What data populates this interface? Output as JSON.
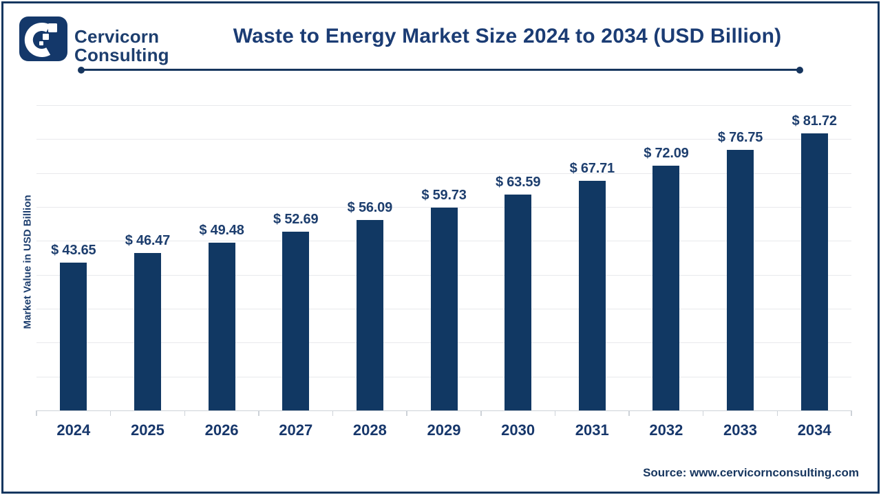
{
  "brand": {
    "line1": "Cervicorn",
    "line2": "Consulting"
  },
  "header": {
    "title": "Waste to Energy Market Size 2024 to 2034 (USD Billion)"
  },
  "chart_data": {
    "type": "bar",
    "title": "Waste to Energy Market Size 2024 to 2034 (USD Billion)",
    "categories": [
      "2024",
      "2025",
      "2026",
      "2027",
      "2028",
      "2029",
      "2030",
      "2031",
      "2032",
      "2033",
      "2034"
    ],
    "values": [
      43.65,
      46.47,
      49.48,
      52.69,
      56.09,
      59.73,
      63.59,
      67.71,
      72.09,
      76.75,
      81.72
    ],
    "labels": [
      "$ 43.65",
      "$ 46.47",
      "$ 49.48",
      "$ 52.69",
      "$ 56.09",
      "$ 59.73",
      "$ 63.59",
      "$ 67.71",
      "$ 72.09",
      "$ 76.75",
      "$ 81.72"
    ],
    "xlabel": "",
    "ylabel": "Market Value in USD Billion",
    "ylim": [
      0,
      90
    ],
    "gridline_interval": 10,
    "grid": true,
    "legend": false,
    "bar_color": "#113863",
    "value_label_color": "#1d3e6e"
  },
  "footer": {
    "source": "Source: www.cervicornconsulting.com"
  },
  "colors": {
    "navy_text": "#1d3e6e",
    "bar": "#113863",
    "title_rule": "#16355e",
    "grid": "#e8e9ec",
    "axis": "#cdd2d8",
    "border": "#14365f",
    "background": "#ffffff"
  }
}
